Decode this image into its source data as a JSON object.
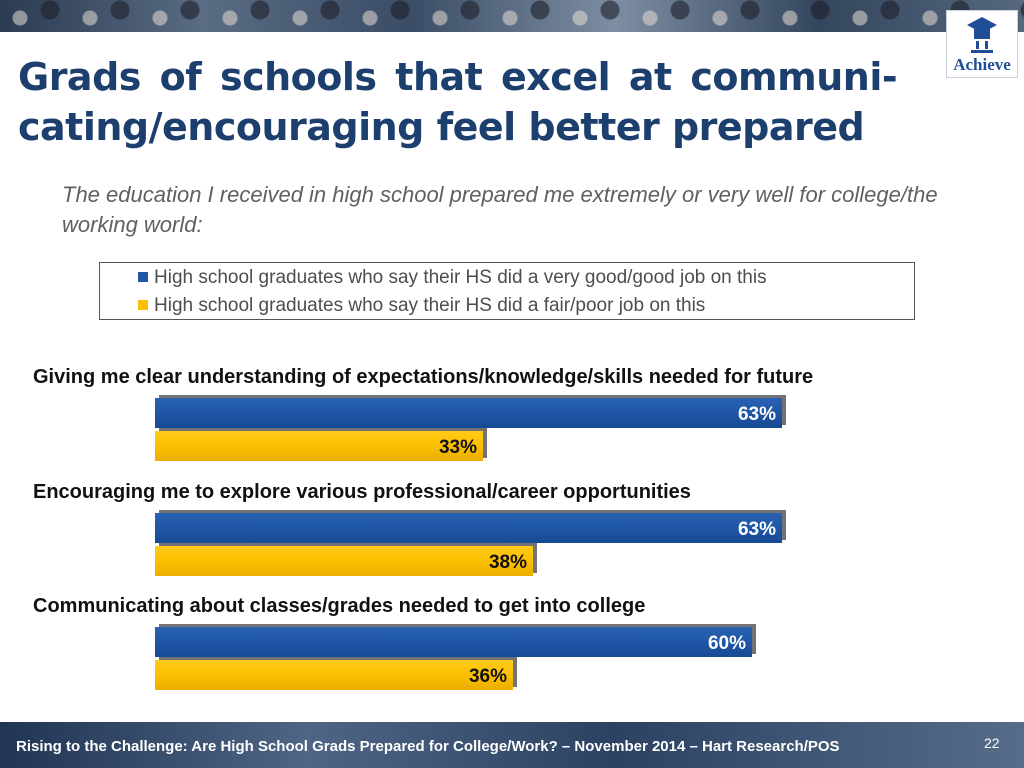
{
  "header": {
    "title_lines": [
      "Grads of schools that excel at communi-",
      "cating/encouraging feel better prepared"
    ],
    "subtitle": "The education I received in high school prepared me extremely or very well for college/the working world:",
    "logo_text": "Achieve"
  },
  "colors": {
    "series_blue": "#1f56a6",
    "series_yellow": "#fcc000",
    "title": "#1d3f6e"
  },
  "chart_data": {
    "type": "bar",
    "orientation": "horizontal",
    "categories": [
      "Giving me clear understanding of expectations/knowledge/skills needed for future",
      "Encouraging me to explore various professional/career opportunities",
      "Communicating about classes/grades needed to get into college"
    ],
    "series": [
      {
        "name": "High school graduates who say their HS did a very good/good job on this",
        "values": [
          63,
          63,
          60
        ],
        "labels": [
          "63%",
          "63%",
          "60%"
        ],
        "color": "#1f56a6"
      },
      {
        "name": "High school graduates who say their HS did a fair/poor job on this",
        "values": [
          33,
          38,
          36
        ],
        "labels": [
          "33%",
          "38%",
          "36%"
        ],
        "color": "#fcc000"
      }
    ],
    "unit": "%",
    "xlim": [
      0,
      100
    ],
    "legend": "top",
    "grid": false
  },
  "footer": {
    "text": "Rising to the Challenge:  Are High School Grads Prepared for College/Work? – November 2014 – Hart Research/POS",
    "page_number": "22"
  }
}
